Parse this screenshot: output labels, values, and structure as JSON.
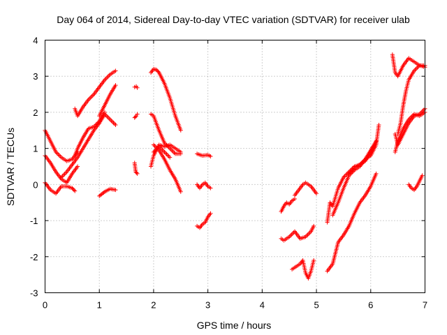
{
  "chart_data": {
    "type": "scatter",
    "title": "Day 064 of 2014, Sidereal Day-to-day VTEC variation (SDTVAR) for receiver ulab",
    "xlabel": "GPS time / hours",
    "ylabel": "SDTVAR / TECUs",
    "xlim": [
      0,
      7
    ],
    "ylim": [
      -3,
      4
    ],
    "xticks": [
      "0",
      "1",
      "2",
      "3",
      "4",
      "5",
      "6",
      "7"
    ],
    "yticks": [
      "-3",
      "-2",
      "-1",
      "0",
      "1",
      "2",
      "3",
      "4"
    ],
    "grid": true,
    "legend": "none",
    "marker": "+",
    "color": "#ff0000",
    "segments": [
      {
        "x": [
          0.0,
          0.1,
          0.2,
          0.3,
          0.4,
          0.5,
          0.6
        ],
        "y": [
          1.5,
          1.2,
          0.9,
          0.75,
          0.65,
          0.7,
          0.9
        ]
      },
      {
        "x": [
          0.0,
          0.1,
          0.2,
          0.3,
          0.4,
          0.5,
          0.6
        ],
        "y": [
          0.8,
          0.6,
          0.35,
          0.15,
          0.05,
          0.3,
          0.5
        ]
      },
      {
        "x": [
          0.0,
          0.1,
          0.2,
          0.3,
          0.4,
          0.5,
          0.55
        ],
        "y": [
          0.05,
          -0.15,
          -0.25,
          -0.05,
          -0.05,
          -0.1,
          -0.18
        ]
      },
      {
        "x": [
          0.3,
          0.4,
          0.5,
          0.6,
          0.7,
          0.8,
          0.9,
          1.0,
          1.1,
          1.2,
          1.3
        ],
        "y": [
          0.2,
          0.35,
          0.55,
          0.75,
          1.0,
          1.25,
          1.5,
          1.7,
          1.95,
          1.8,
          1.65
        ]
      },
      {
        "x": [
          0.55,
          0.6,
          0.7,
          0.8,
          0.9,
          1.0,
          1.05,
          1.1
        ],
        "y": [
          0.8,
          1.0,
          1.3,
          1.55,
          1.6,
          1.75,
          1.9,
          2.0
        ]
      },
      {
        "x": [
          0.55,
          0.6,
          0.7,
          0.8,
          0.9,
          1.0,
          1.1,
          1.2,
          1.3
        ],
        "y": [
          2.1,
          1.9,
          2.15,
          2.35,
          2.5,
          2.7,
          2.9,
          3.05,
          3.15
        ]
      },
      {
        "x": [
          1.0,
          1.1,
          1.2,
          1.3
        ],
        "y": [
          1.9,
          2.2,
          2.5,
          2.75
        ]
      },
      {
        "x": [
          1.0,
          1.1,
          1.2,
          1.3
        ],
        "y": [
          -0.32,
          -0.2,
          -0.12,
          -0.15
        ]
      },
      {
        "x": [
          1.65,
          1.68,
          1.7
        ],
        "y": [
          2.7,
          2.72,
          2.68
        ]
      },
      {
        "x": [
          1.65,
          1.68,
          1.7
        ],
        "y": [
          1.85,
          1.9,
          1.95
        ]
      },
      {
        "x": [
          1.65,
          1.67,
          1.7
        ],
        "y": [
          0.6,
          0.35,
          0.3
        ]
      },
      {
        "x": [
          1.95,
          2.0,
          2.05,
          2.1,
          2.2,
          2.3,
          2.4,
          2.5
        ],
        "y": [
          3.1,
          3.2,
          3.18,
          3.1,
          2.8,
          2.4,
          1.9,
          1.5
        ]
      },
      {
        "x": [
          1.95,
          2.0,
          2.1,
          2.2,
          2.3,
          2.4,
          2.5
        ],
        "y": [
          1.95,
          1.9,
          1.5,
          1.15,
          1.0,
          0.85,
          0.85
        ]
      },
      {
        "x": [
          1.95,
          2.0,
          2.1,
          2.2,
          2.3,
          2.4,
          2.5
        ],
        "y": [
          0.5,
          0.8,
          1.1,
          1.05,
          1.1,
          1.0,
          0.9
        ]
      },
      {
        "x": [
          2.0,
          2.1,
          2.2,
          2.3,
          2.4,
          2.5
        ],
        "y": [
          1.1,
          0.95,
          0.7,
          0.4,
          0.15,
          -0.2
        ]
      },
      {
        "x": [
          2.0,
          2.1,
          2.2,
          2.3
        ],
        "y": [
          0.9,
          1.05,
          0.9,
          0.75
        ]
      },
      {
        "x": [
          2.8,
          2.9,
          3.0,
          3.05
        ],
        "y": [
          0.85,
          0.8,
          0.82,
          0.78
        ]
      },
      {
        "x": [
          2.8,
          2.85,
          2.9,
          2.95,
          3.0,
          3.05
        ],
        "y": [
          0.0,
          -0.1,
          0.0,
          0.05,
          -0.05,
          -0.1
        ]
      },
      {
        "x": [
          2.8,
          2.85,
          2.9,
          2.95,
          3.0,
          3.05
        ],
        "y": [
          -1.15,
          -1.2,
          -1.1,
          -1.05,
          -0.9,
          -0.8
        ]
      },
      {
        "x": [
          4.35,
          4.4,
          4.45,
          4.5,
          4.55,
          4.6
        ],
        "y": [
          -0.75,
          -0.6,
          -0.5,
          -0.55,
          -0.45,
          -0.4
        ]
      },
      {
        "x": [
          4.6,
          4.7,
          4.75,
          4.8,
          4.9,
          5.0
        ],
        "y": [
          -0.3,
          -0.1,
          0.0,
          0.05,
          -0.05,
          -0.25
        ]
      },
      {
        "x": [
          4.35,
          4.4,
          4.5,
          4.6,
          4.7,
          4.8,
          4.9,
          4.95
        ],
        "y": [
          -1.5,
          -1.55,
          -1.45,
          -1.3,
          -1.5,
          -1.45,
          -1.3,
          -1.15
        ]
      },
      {
        "x": [
          4.55,
          4.6,
          4.7,
          4.75,
          4.8,
          4.85,
          4.9,
          4.95
        ],
        "y": [
          -2.35,
          -2.3,
          -2.2,
          -2.1,
          -2.45,
          -2.6,
          -2.4,
          -2.1
        ]
      },
      {
        "x": [
          5.2,
          5.3,
          5.4,
          5.5,
          5.6,
          5.7,
          5.8,
          5.9,
          6.0,
          6.1
        ],
        "y": [
          -2.4,
          -2.2,
          -1.6,
          -1.4,
          -1.15,
          -0.8,
          -0.5,
          -0.3,
          -0.05,
          0.3
        ]
      },
      {
        "x": [
          5.2,
          5.25,
          5.3,
          5.4,
          5.5,
          5.6,
          5.7,
          5.8,
          5.9,
          6.0,
          6.1
        ],
        "y": [
          -1.05,
          -0.5,
          -0.6,
          -0.1,
          0.2,
          0.35,
          0.5,
          0.55,
          0.65,
          0.9,
          1.2
        ]
      },
      {
        "x": [
          5.3,
          5.4,
          5.5,
          5.6,
          5.7,
          5.8,
          5.9,
          6.0,
          6.1
        ],
        "y": [
          -0.85,
          -0.5,
          -0.1,
          0.25,
          0.4,
          0.5,
          0.7,
          0.95,
          1.2
        ]
      },
      {
        "x": [
          5.6,
          5.7,
          5.8,
          5.9,
          6.0,
          6.1,
          6.15
        ],
        "y": [
          0.3,
          0.45,
          0.55,
          0.7,
          0.8,
          1.1,
          1.65
        ]
      },
      {
        "x": [
          6.4,
          6.45,
          6.5,
          6.6,
          6.7,
          6.8,
          6.9,
          7.0
        ],
        "y": [
          3.6,
          3.1,
          3.0,
          3.3,
          3.5,
          3.4,
          3.3,
          3.25
        ]
      },
      {
        "x": [
          6.45,
          6.5,
          6.6,
          6.7,
          6.8,
          6.9,
          7.0
        ],
        "y": [
          1.4,
          1.1,
          1.4,
          1.7,
          1.9,
          1.95,
          2.1
        ]
      },
      {
        "x": [
          6.45,
          6.5,
          6.6,
          6.7,
          6.8,
          6.9,
          7.0
        ],
        "y": [
          0.9,
          1.2,
          1.55,
          1.8,
          1.95,
          1.9,
          2.0
        ]
      },
      {
        "x": [
          6.5,
          6.55,
          6.6,
          6.65,
          6.7,
          6.8,
          6.9,
          7.0
        ],
        "y": [
          1.4,
          1.7,
          2.2,
          2.6,
          2.9,
          3.15,
          3.3,
          3.3
        ]
      },
      {
        "x": [
          6.7,
          6.75,
          6.8,
          6.85,
          6.9,
          6.95
        ],
        "y": [
          0.0,
          -0.1,
          -0.15,
          -0.05,
          0.1,
          0.25
        ]
      }
    ]
  }
}
